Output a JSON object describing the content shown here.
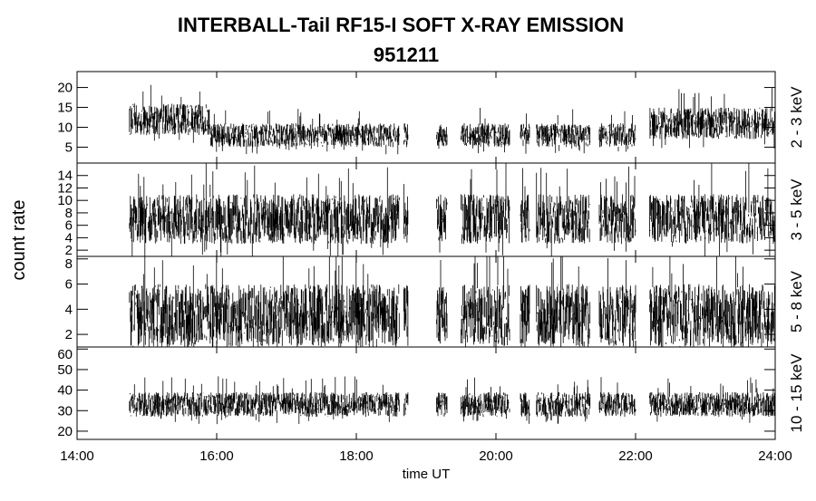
{
  "chart_data": {
    "type": "line",
    "title": "INTERBALL-Tail RF15-I SOFT X-RAY EMISSION",
    "subtitle": "951211",
    "xlabel": "time UT",
    "ylabel": "count rate",
    "xlim_hours": [
      14,
      24
    ],
    "x_tick_labels": [
      "14:00",
      "16:00",
      "18:00",
      "20:00",
      "22:00",
      "24:00"
    ],
    "grid": false,
    "color": "#000000",
    "data_segments_hours": [
      [
        14.75,
        18.62
      ],
      [
        18.68,
        18.74
      ],
      [
        19.15,
        19.3
      ],
      [
        19.5,
        20.2
      ],
      [
        20.35,
        20.48
      ],
      [
        20.58,
        21.35
      ],
      [
        21.48,
        22.0
      ],
      [
        22.2,
        24.0
      ]
    ],
    "panels": [
      {
        "band": "2 - 3 keV",
        "ylim": [
          1,
          24
        ],
        "y_ticks": [
          5,
          10,
          15,
          20
        ],
        "levels": [
          {
            "from": 14.75,
            "to": 15.9,
            "mean": 12,
            "spread": 4
          },
          {
            "from": 15.9,
            "to": 22.2,
            "mean": 8,
            "spread": 3
          },
          {
            "from": 22.2,
            "to": 24,
            "mean": 11,
            "spread": 4
          }
        ]
      },
      {
        "band": "3 - 5 keV",
        "ylim": [
          1,
          16
        ],
        "y_ticks": [
          2,
          4,
          6,
          8,
          10,
          12,
          14
        ],
        "levels": [
          {
            "from": 14,
            "to": 24,
            "mean": 7,
            "spread": 4
          }
        ]
      },
      {
        "band": "5 - 8 keV",
        "ylim": [
          1,
          8.2
        ],
        "y_ticks": [
          2,
          4,
          6,
          8
        ],
        "levels": [
          {
            "from": 14,
            "to": 24,
            "mean": 3.5,
            "spread": 2.5
          }
        ]
      },
      {
        "band": "10 - 15 keV",
        "ylim": [
          16,
          61
        ],
        "y_ticks": [
          20,
          30,
          40,
          50,
          60
        ],
        "levels": [
          {
            "from": 14,
            "to": 24,
            "mean": 33,
            "spread": 6
          }
        ]
      }
    ]
  }
}
